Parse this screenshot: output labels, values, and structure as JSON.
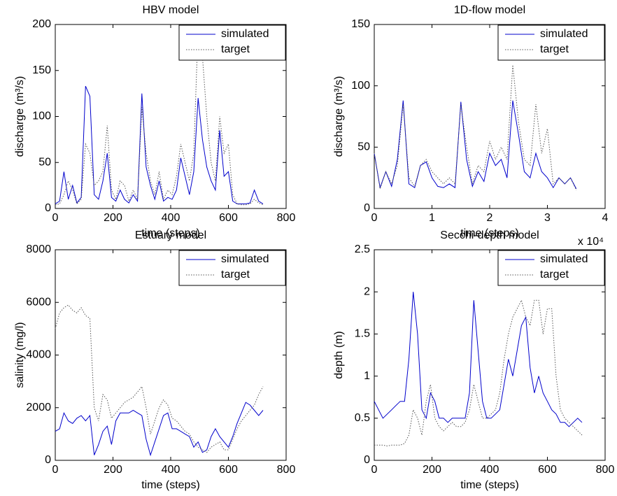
{
  "chart_data": [
    {
      "type": "line",
      "title": "HBV model",
      "xlabel": "time (steps)",
      "ylabel": "discharge (m³/s)",
      "x": [
        0,
        15,
        30,
        45,
        60,
        75,
        90,
        105,
        120,
        135,
        150,
        165,
        180,
        195,
        210,
        225,
        240,
        255,
        270,
        285,
        300,
        315,
        330,
        345,
        360,
        375,
        390,
        405,
        420,
        435,
        450,
        465,
        480,
        495,
        510,
        525,
        540,
        555,
        570,
        585,
        600,
        615,
        630,
        645,
        660,
        675,
        690,
        705,
        720
      ],
      "series": [
        {
          "name": "simulated",
          "color": "#0000cc",
          "line_style": "solid",
          "values": [
            5,
            8,
            40,
            10,
            25,
            6,
            12,
            133,
            122,
            15,
            10,
            30,
            60,
            12,
            8,
            20,
            10,
            6,
            15,
            8,
            125,
            45,
            25,
            10,
            30,
            8,
            12,
            10,
            20,
            55,
            35,
            15,
            40,
            120,
            75,
            45,
            30,
            20,
            85,
            35,
            40,
            8,
            5,
            5,
            5,
            6,
            20,
            8,
            5
          ]
        },
        {
          "name": "target",
          "color": "#555555",
          "line_style": "dotted",
          "values": [
            4,
            5,
            15,
            30,
            20,
            5,
            10,
            70,
            60,
            25,
            30,
            40,
            90,
            20,
            10,
            30,
            25,
            8,
            20,
            10,
            110,
            60,
            30,
            15,
            40,
            10,
            20,
            15,
            35,
            70,
            50,
            30,
            60,
            197,
            165,
            100,
            50,
            30,
            100,
            60,
            70,
            15,
            5,
            4,
            4,
            5,
            10,
            6,
            4
          ]
        }
      ],
      "xlim": [
        0,
        800
      ],
      "xticks": [
        0,
        200,
        400,
        600,
        800
      ],
      "ylim": [
        0,
        200
      ],
      "yticks": [
        0,
        50,
        100,
        150,
        200
      ],
      "legend": "upper right"
    },
    {
      "type": "line",
      "title": "1D-flow model",
      "xlabel": "time (steps)",
      "ylabel": "discharge (m³/s)",
      "x_multiplier": "x 10⁴",
      "x": [
        0,
        0.1,
        0.2,
        0.3,
        0.4,
        0.5,
        0.6,
        0.7,
        0.8,
        0.9,
        1,
        1.1,
        1.2,
        1.3,
        1.4,
        1.5,
        1.6,
        1.7,
        1.8,
        1.9,
        2,
        2.1,
        2.2,
        2.3,
        2.4,
        2.5,
        2.6,
        2.7,
        2.8,
        2.9,
        3,
        3.1,
        3.2,
        3.3,
        3.4,
        3.5
      ],
      "series": [
        {
          "name": "simulated",
          "color": "#0000cc",
          "line_style": "solid",
          "values": [
            45,
            17,
            30,
            18,
            40,
            88,
            20,
            17,
            35,
            38,
            25,
            18,
            17,
            20,
            17,
            87,
            40,
            18,
            30,
            22,
            45,
            35,
            40,
            25,
            88,
            60,
            30,
            25,
            45,
            30,
            25,
            17,
            25,
            20,
            25,
            16
          ]
        },
        {
          "name": "target",
          "color": "#555555",
          "line_style": "dotted",
          "values": [
            45,
            16,
            30,
            20,
            35,
            85,
            25,
            18,
            35,
            40,
            30,
            25,
            20,
            25,
            20,
            85,
            50,
            20,
            35,
            30,
            55,
            40,
            50,
            40,
            117,
            70,
            40,
            35,
            85,
            45,
            65,
            20,
            25,
            20,
            25,
            15
          ]
        }
      ],
      "xlim": [
        0,
        4
      ],
      "xticks": [
        0,
        1,
        2,
        3,
        4
      ],
      "ylim": [
        0,
        150
      ],
      "yticks": [
        0,
        50,
        100,
        150
      ],
      "legend": "upper right"
    },
    {
      "type": "line",
      "title": "Estuary model",
      "xlabel": "time (steps)",
      "ylabel": "salinity (mg/l)",
      "x": [
        0,
        15,
        30,
        45,
        60,
        75,
        90,
        105,
        120,
        135,
        150,
        165,
        180,
        195,
        210,
        225,
        240,
        255,
        270,
        285,
        300,
        315,
        330,
        345,
        360,
        375,
        390,
        405,
        420,
        435,
        450,
        465,
        480,
        495,
        510,
        525,
        540,
        555,
        570,
        585,
        600,
        615,
        630,
        645,
        660,
        675,
        690,
        705,
        720
      ],
      "series": [
        {
          "name": "simulated",
          "color": "#0000cc",
          "line_style": "solid",
          "values": [
            1100,
            1200,
            1800,
            1500,
            1400,
            1600,
            1700,
            1500,
            1700,
            200,
            600,
            1100,
            1300,
            600,
            1500,
            1800,
            1800,
            1800,
            1900,
            1800,
            1700,
            800,
            200,
            700,
            1200,
            1700,
            1800,
            1200,
            1200,
            1100,
            1000,
            900,
            500,
            700,
            300,
            400,
            900,
            1200,
            900,
            700,
            500,
            900,
            1400,
            1800,
            2200,
            2100,
            1900,
            1700,
            1900
          ]
        },
        {
          "name": "target",
          "color": "#555555",
          "line_style": "dotted",
          "values": [
            5000,
            5600,
            5800,
            5900,
            5700,
            5600,
            5800,
            5500,
            5400,
            2000,
            1500,
            2500,
            2300,
            1600,
            1800,
            2000,
            2200,
            2300,
            2400,
            2600,
            2800,
            2000,
            1000,
            1500,
            2000,
            2300,
            2100,
            1600,
            1500,
            1300,
            1100,
            1000,
            700,
            500,
            400,
            300,
            500,
            600,
            700,
            400,
            400,
            800,
            1200,
            1500,
            1700,
            1900,
            2100,
            2500,
            2800
          ]
        }
      ],
      "xlim": [
        0,
        800
      ],
      "xticks": [
        0,
        200,
        400,
        600,
        800
      ],
      "ylim": [
        0,
        8000
      ],
      "yticks": [
        0,
        2000,
        4000,
        6000,
        8000
      ],
      "legend": "upper right"
    },
    {
      "type": "line",
      "title": "Secchi-depth model",
      "xlabel": "time (steps)",
      "ylabel": "depth (m)",
      "x": [
        0,
        15,
        30,
        45,
        60,
        75,
        90,
        105,
        120,
        135,
        150,
        165,
        180,
        195,
        210,
        225,
        240,
        255,
        270,
        285,
        300,
        315,
        330,
        345,
        360,
        375,
        390,
        405,
        420,
        435,
        450,
        465,
        480,
        495,
        510,
        525,
        540,
        555,
        570,
        585,
        600,
        615,
        630,
        645,
        660,
        675,
        690,
        705,
        720
      ],
      "series": [
        {
          "name": "simulated",
          "color": "#0000cc",
          "line_style": "solid",
          "values": [
            0.7,
            0.6,
            0.5,
            0.55,
            0.6,
            0.65,
            0.7,
            0.7,
            1.2,
            2.0,
            1.5,
            0.6,
            0.5,
            0.8,
            0.7,
            0.5,
            0.5,
            0.45,
            0.5,
            0.5,
            0.5,
            0.5,
            0.8,
            1.9,
            1.3,
            0.7,
            0.5,
            0.5,
            0.55,
            0.6,
            0.9,
            1.2,
            1.0,
            1.3,
            1.6,
            1.7,
            1.1,
            0.8,
            1.0,
            0.8,
            0.7,
            0.6,
            0.55,
            0.45,
            0.45,
            0.4,
            0.45,
            0.5,
            0.45
          ]
        },
        {
          "name": "target",
          "color": "#555555",
          "line_style": "dotted",
          "values": [
            0.18,
            0.18,
            0.18,
            0.17,
            0.18,
            0.18,
            0.18,
            0.2,
            0.3,
            0.6,
            0.5,
            0.3,
            0.7,
            0.9,
            0.5,
            0.4,
            0.35,
            0.4,
            0.45,
            0.4,
            0.4,
            0.45,
            0.6,
            0.9,
            0.7,
            0.5,
            0.5,
            0.55,
            0.6,
            0.8,
            1.2,
            1.5,
            1.7,
            1.8,
            1.9,
            1.7,
            1.6,
            1.9,
            1.9,
            1.5,
            1.8,
            1.8,
            1.0,
            0.6,
            0.5,
            0.45,
            0.4,
            0.35,
            0.3
          ]
        }
      ],
      "xlim": [
        0,
        800
      ],
      "xticks": [
        0,
        200,
        400,
        600,
        800
      ],
      "ylim": [
        0,
        2.5
      ],
      "yticks": [
        0,
        0.5,
        1,
        1.5,
        2,
        2.5
      ],
      "legend": "upper right"
    }
  ]
}
